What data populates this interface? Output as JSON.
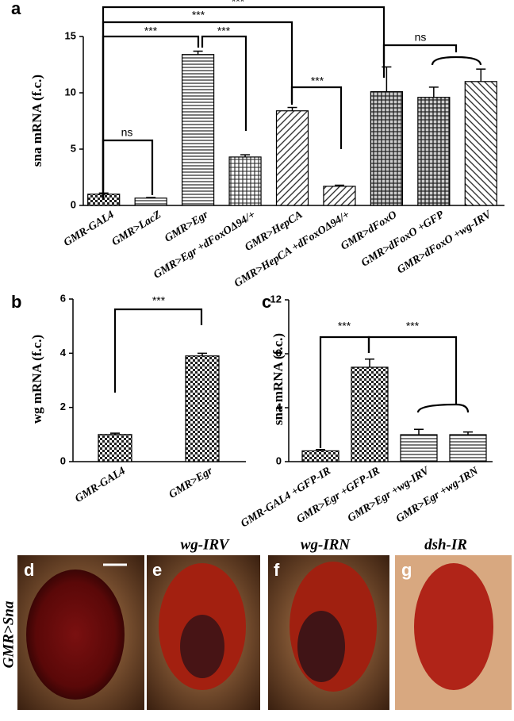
{
  "chart_data": [
    {
      "type": "bar",
      "panel": "a",
      "ylabel": "sna mRNA (f.c.)",
      "categories": [
        "GMR-GAL4",
        "GMR>LacZ",
        "GMR>Egr",
        "GMR>Egr +dFoxOΔ94/+",
        "GMR>HepCA",
        "GMR>HepCA +dFoxOΔ94/+",
        "GMR>dFoxO",
        "GMR>dFoxO +GFP",
        "GMR>dFoxO +wg-IRV"
      ],
      "values": [
        1.0,
        0.65,
        13.4,
        4.3,
        8.4,
        1.7,
        10.1,
        9.6,
        11.0
      ],
      "errors": [
        0.1,
        0.05,
        0.3,
        0.2,
        0.3,
        0.1,
        2.2,
        0.9,
        1.1
      ],
      "patterns": [
        "checker",
        "hlines",
        "hlines",
        "grid",
        "diag",
        "diag",
        "dgrid",
        "dgrid",
        "rdiag"
      ],
      "ylim": [
        0,
        15
      ],
      "yticks": [
        0,
        5,
        10,
        15
      ],
      "annotations": [
        "***",
        "***",
        "***",
        "***",
        "***",
        "ns",
        "ns"
      ]
    },
    {
      "type": "bar",
      "panel": "b",
      "ylabel": "wg mRNA (f.c.)",
      "categories": [
        "GMR-GAL4",
        "GMR>Egr"
      ],
      "values": [
        1.0,
        3.9
      ],
      "errors": [
        0.05,
        0.1
      ],
      "patterns": [
        "checker",
        "checker"
      ],
      "ylim": [
        0,
        6
      ],
      "yticks": [
        0,
        2,
        4,
        6
      ],
      "annotations": [
        "***"
      ]
    },
    {
      "type": "bar",
      "panel": "c",
      "ylabel": "sna mRNA (f.c.)",
      "categories": [
        "GMR-GAL4 +GFP-IR",
        "GMR>Egr +GFP-IR",
        "GMR>Egr +wg-IRV",
        "GMR>Egr +wg-IRN"
      ],
      "values": [
        0.8,
        7.0,
        2.0,
        2.0
      ],
      "errors": [
        0.1,
        0.6,
        0.4,
        0.2
      ],
      "patterns": [
        "checker",
        "checker",
        "hlines",
        "hlines"
      ],
      "ylim": [
        0,
        12
      ],
      "yticks": [
        0,
        4,
        8,
        12
      ],
      "annotations": [
        "***",
        "***"
      ]
    }
  ],
  "photos": {
    "side_label": "GMR>Sna",
    "panels": [
      {
        "label": "d"
      },
      {
        "label": "e",
        "title": "wg-IRV"
      },
      {
        "label": "f",
        "title": "wg-IRN"
      },
      {
        "label": "g",
        "title": "dsh-IR"
      }
    ]
  }
}
